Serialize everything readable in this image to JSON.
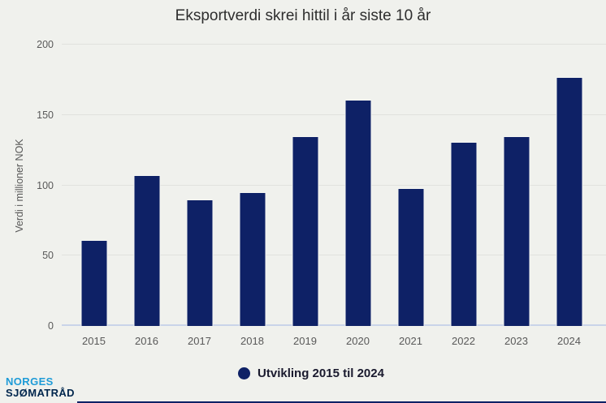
{
  "chart_data": {
    "type": "bar",
    "title": "Eksportverdi skrei hittil i år siste 10 år",
    "xlabel": "",
    "ylabel": "Verdi i millioner NOK",
    "categories": [
      "2015",
      "2016",
      "2017",
      "2018",
      "2019",
      "2020",
      "2021",
      "2022",
      "2023",
      "2024"
    ],
    "values": [
      61,
      107,
      90,
      95,
      135,
      161,
      98,
      131,
      135,
      177
    ],
    "ylim": [
      0,
      200
    ],
    "yticks": [
      0,
      50,
      100,
      150,
      200
    ],
    "grid": true,
    "legend": {
      "label": "Utvikling 2015 til 2024",
      "position": "bottom"
    }
  },
  "logo": {
    "line1": "NORGES",
    "line2": "SJØMATRÅD"
  },
  "colors": {
    "bar": "#0e2166",
    "background": "#f0f1ed",
    "gridline": "#e1e2de",
    "zero_line": "#c9d4e9",
    "tick_text": "#595959",
    "logo_blue": "#1e9bd7",
    "logo_navy": "#00264d"
  }
}
